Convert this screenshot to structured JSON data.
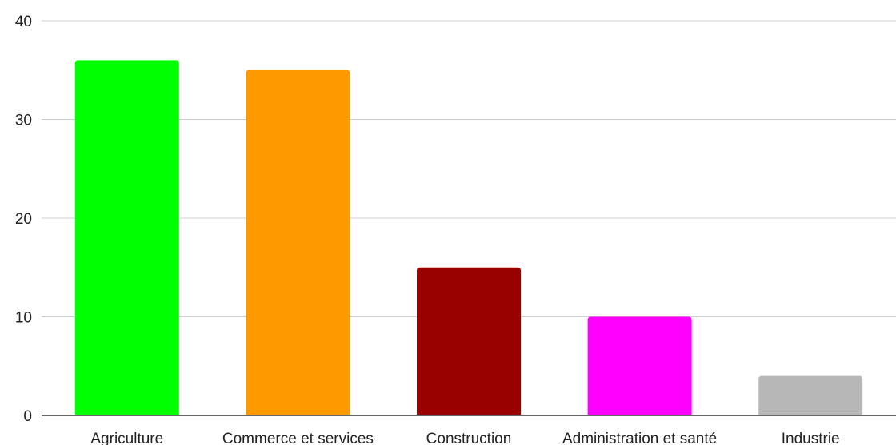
{
  "chart_data": {
    "type": "bar",
    "title": "",
    "xlabel": "",
    "ylabel": "",
    "categories": [
      "Agriculture",
      "Commerce et services",
      "Construction",
      "Administration et santé",
      "Industrie"
    ],
    "values": [
      36,
      35,
      15,
      10,
      4
    ],
    "colors": [
      "#00ff00",
      "#ff9900",
      "#990000",
      "#ff00ff",
      "#b7b7b7"
    ],
    "ylim": [
      0,
      40
    ],
    "yticks": [
      0,
      10,
      20,
      30,
      40
    ],
    "grid": true,
    "legend": "none"
  }
}
